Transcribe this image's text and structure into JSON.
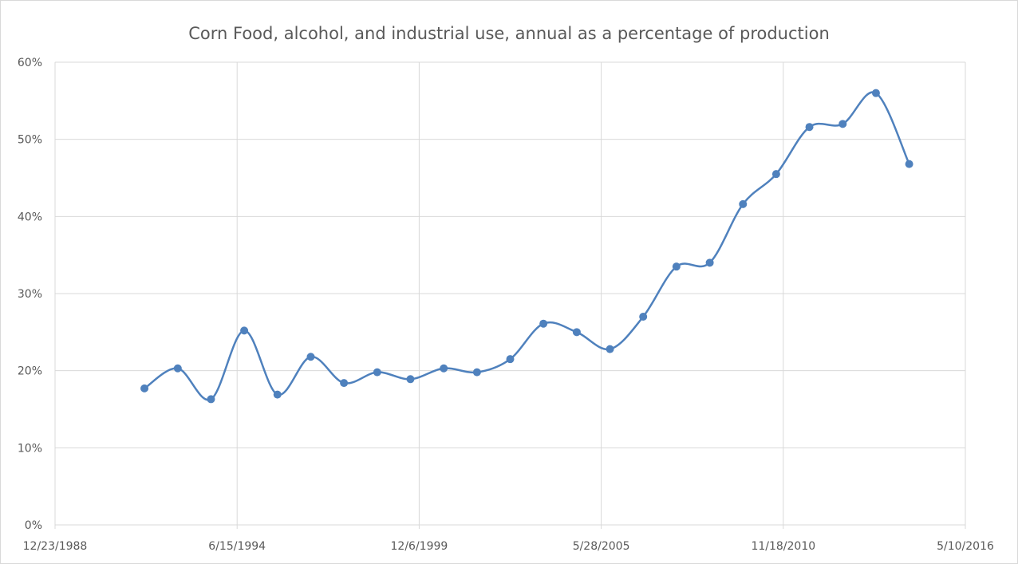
{
  "chart_data": {
    "type": "line",
    "title": "Corn Food, alcohol, and industrial use, annual as a percentage of production",
    "xlabel": "",
    "ylabel": "",
    "x_tick_labels": [
      "12/23/1988",
      "6/15/1994",
      "12/6/1999",
      "5/28/2005",
      "11/18/2010",
      "5/10/2016"
    ],
    "xlim": [
      "1988-12-23",
      "2016-05-10"
    ],
    "y_tick_labels": [
      "0%",
      "10%",
      "20%",
      "30%",
      "40%",
      "50%",
      "60%"
    ],
    "ylim": [
      0,
      60
    ],
    "grid": true,
    "smooth": true,
    "legend": false,
    "series_color": "#4f81bd",
    "gridline_color": "#d9d9d9",
    "series": [
      {
        "x": [
          "1991-09-01",
          "1992-09-01",
          "1993-09-01",
          "1994-09-01",
          "1995-09-01",
          "1996-09-01",
          "1997-09-01",
          "1998-09-01",
          "1999-09-01",
          "2000-09-01",
          "2001-09-01",
          "2002-09-01",
          "2003-09-01",
          "2004-09-01",
          "2005-09-01",
          "2006-09-01",
          "2007-09-01",
          "2008-09-01",
          "2009-09-01",
          "2010-09-01",
          "2011-09-01",
          "2012-09-01",
          "2013-09-01",
          "2014-09-01"
        ],
        "y": [
          17.7,
          20.3,
          16.3,
          25.2,
          16.9,
          21.8,
          18.4,
          19.8,
          18.9,
          20.3,
          19.8,
          21.5,
          26.1,
          25.0,
          22.8,
          27.0,
          33.5,
          34.0,
          41.6,
          45.5,
          51.6,
          52.0,
          56.0,
          46.8
        ]
      }
    ]
  }
}
